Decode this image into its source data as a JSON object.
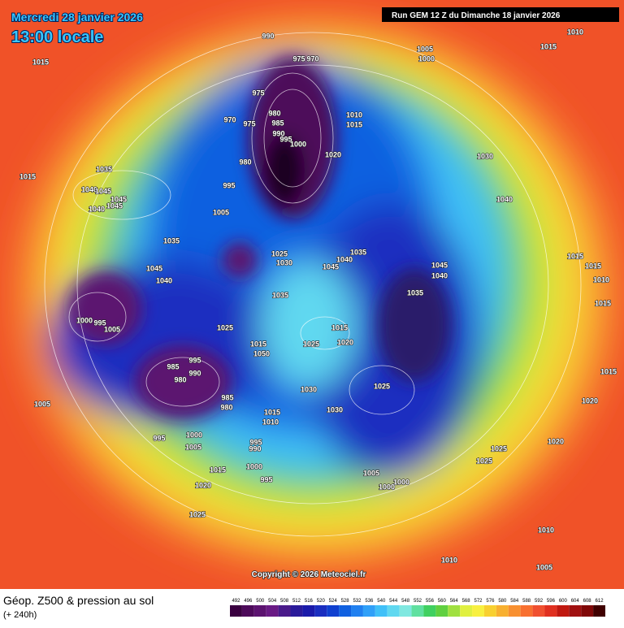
{
  "header": {
    "date": "Mercredi 28 janvier 2026",
    "time": "13:00 locale",
    "run": "Run GEM 12 Z du Dimanche 18 janvier 2026"
  },
  "pressure_labels": [
    990,
    975,
    970,
    1015,
    1010,
    1015,
    1005,
    1000,
    975,
    980,
    985,
    970,
    975,
    990,
    995,
    1000,
    1010,
    1015,
    1020,
    1030,
    980,
    995,
    1005,
    1040,
    1015,
    1035,
    1040,
    1045,
    1045,
    1045,
    1040,
    1035,
    1025,
    1030,
    1040,
    1035,
    1045,
    1045,
    1040,
    1045,
    1040,
    1035,
    1035,
    1015,
    1015,
    1010,
    1015,
    1000,
    995,
    1005,
    1025,
    1015,
    1020,
    1025,
    1015,
    1050,
    995,
    985,
    990,
    980,
    1015,
    1030,
    1025,
    985,
    980,
    1030,
    1015,
    1010,
    1020,
    1005,
    995,
    1000,
    1005,
    995,
    990,
    1000,
    995,
    1025,
    1025,
    1020,
    1015,
    1005,
    1000,
    1000,
    1020,
    1025,
    1010,
    1010,
    1005
  ],
  "copyright": "Copyright © 2026 Meteociel.fr",
  "legend": {
    "title": "Géop. Z500 & pression au sol",
    "subtitle": "(+ 240h)",
    "ticks": [
      492,
      496,
      500,
      504,
      508,
      512,
      516,
      520,
      524,
      528,
      532,
      536,
      540,
      544,
      548,
      552,
      556,
      560,
      564,
      568,
      572,
      576,
      580,
      584,
      588,
      592,
      596,
      600,
      604,
      608,
      612
    ],
    "colors": [
      "#3a0040",
      "#4d0a5a",
      "#5c1370",
      "#6a1a85",
      "#4a1a8a",
      "#2a1a9a",
      "#1a1aaa",
      "#1a2ec0",
      "#1040d0",
      "#1060e0",
      "#2080f0",
      "#30a0f8",
      "#40c0f8",
      "#60d8f0",
      "#80e8e0",
      "#60e0a0",
      "#40d060",
      "#60d040",
      "#a0e040",
      "#e0f040",
      "#f8f040",
      "#f8d030",
      "#f8b030",
      "#f89030",
      "#f87030",
      "#f05030",
      "#e03020",
      "#c01810",
      "#a01010",
      "#800808",
      "#400000"
    ]
  }
}
